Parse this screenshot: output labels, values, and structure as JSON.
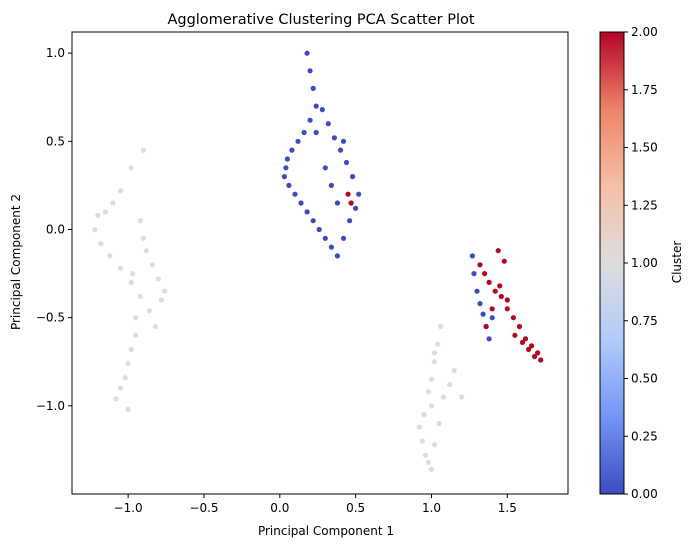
{
  "chart_data": {
    "type": "scatter",
    "title": "Agglomerative Clustering PCA Scatter Plot",
    "xlabel": "Principal Component 1",
    "ylabel": "Principal Component 2",
    "xlim": [
      -1.37,
      1.9
    ],
    "ylim": [
      -1.5,
      1.12
    ],
    "x_ticks": [
      -1.0,
      -0.5,
      0.0,
      0.5,
      1.0,
      1.5
    ],
    "x_tick_labels": [
      "−1.0",
      "−0.5",
      "0.0",
      "0.5",
      "1.0",
      "1.5"
    ],
    "y_ticks": [
      1.0,
      0.5,
      0.0,
      -0.5,
      -1.0
    ],
    "y_tick_labels": [
      "1.0",
      "0.5",
      "0.0",
      "−0.5",
      "−1.0"
    ],
    "grid": false,
    "colormap": "coolwarm",
    "colorbar": {
      "label": "Cluster",
      "min": 0.0,
      "max": 2.0,
      "ticks": [
        2.0,
        1.75,
        1.5,
        1.25,
        1.0,
        0.75,
        0.5,
        0.25,
        0.0
      ],
      "tick_labels": [
        "2.00",
        "1.75",
        "1.50",
        "1.25",
        "1.00",
        "0.75",
        "0.50",
        "0.25",
        "0.00"
      ],
      "color_stops": [
        "#3b4cc0",
        "#7396f5",
        "#b0cbfc",
        "#dddddd",
        "#f6bfa6",
        "#ee8468",
        "#b40426"
      ]
    },
    "cluster_colors": {
      "0": "#3b4cc0",
      "1": "#dddddd",
      "2": "#b40426"
    },
    "series": [
      {
        "cluster": 1,
        "color": "#dddddd",
        "x": [
          -0.9,
          -0.98,
          -1.05,
          -1.1,
          -1.15,
          -1.2,
          -1.22,
          -1.18,
          -1.12,
          -1.05,
          -0.98,
          -0.92,
          -0.86,
          -0.82,
          -0.78,
          -0.76,
          -0.8,
          -0.84,
          -0.88,
          -0.9,
          -0.92,
          -0.95,
          -0.98,
          -1.0,
          -1.02,
          -1.05,
          -1.08,
          -1.0,
          -0.95,
          -0.97
        ],
        "y": [
          0.45,
          0.35,
          0.22,
          0.15,
          0.1,
          0.08,
          0.0,
          -0.08,
          -0.15,
          -0.22,
          -0.3,
          -0.38,
          -0.46,
          -0.55,
          -0.4,
          -0.35,
          -0.28,
          -0.2,
          -0.12,
          -0.05,
          0.05,
          -0.6,
          -0.68,
          -0.76,
          -0.84,
          -0.9,
          -0.96,
          -1.02,
          -0.5,
          -0.25
        ]
      },
      {
        "cluster": 1,
        "color": "#dddddd",
        "x": [
          1.06,
          1.04,
          1.02,
          1.0,
          0.98,
          0.95,
          0.92,
          0.94,
          0.96,
          0.98,
          1.0,
          1.02,
          1.05,
          1.08,
          1.12,
          1.15,
          1.2,
          1.02,
          1.0
        ],
        "y": [
          -0.55,
          -0.65,
          -0.75,
          -0.85,
          -0.92,
          -1.05,
          -1.12,
          -1.2,
          -1.28,
          -1.32,
          -1.36,
          -1.22,
          -1.1,
          -0.95,
          -0.88,
          -0.8,
          -0.95,
          -0.7,
          -1.0
        ]
      },
      {
        "cluster": 0,
        "color": "#3b4cc0",
        "x": [
          0.18,
          0.2,
          0.22,
          0.24,
          0.2,
          0.16,
          0.12,
          0.08,
          0.05,
          0.04,
          0.03,
          0.06,
          0.1,
          0.14,
          0.18,
          0.22,
          0.26,
          0.3,
          0.34,
          0.38,
          0.42,
          0.46,
          0.5,
          0.52,
          0.48,
          0.44,
          0.4,
          0.36,
          0.32,
          0.28,
          0.24,
          0.3,
          0.34,
          0.38,
          0.42
        ],
        "y": [
          1.0,
          0.9,
          0.8,
          0.7,
          0.62,
          0.55,
          0.5,
          0.45,
          0.4,
          0.35,
          0.3,
          0.25,
          0.2,
          0.15,
          0.1,
          0.05,
          0.0,
          -0.05,
          -0.1,
          -0.15,
          -0.05,
          0.05,
          0.12,
          0.2,
          0.3,
          0.38,
          0.45,
          0.52,
          0.6,
          0.68,
          0.55,
          0.35,
          0.25,
          0.15,
          0.5
        ]
      },
      {
        "cluster": 0,
        "color": "#3b4cc0",
        "x": [
          1.27,
          1.28,
          1.3,
          1.32,
          1.34,
          1.36,
          1.38,
          1.4
        ],
        "y": [
          -0.15,
          -0.25,
          -0.35,
          -0.42,
          -0.48,
          -0.55,
          -0.62,
          -0.5
        ]
      },
      {
        "cluster": 2,
        "color": "#b40426",
        "x": [
          1.32,
          1.35,
          1.38,
          1.42,
          1.46,
          1.5,
          1.54,
          1.58,
          1.62,
          1.66,
          1.7,
          1.72,
          1.68,
          1.64,
          1.6,
          1.55,
          1.5,
          1.45,
          1.4,
          1.36,
          1.44,
          1.48,
          0.45,
          0.47
        ],
        "y": [
          -0.2,
          -0.25,
          -0.3,
          -0.35,
          -0.38,
          -0.45,
          -0.5,
          -0.55,
          -0.62,
          -0.66,
          -0.7,
          -0.74,
          -0.72,
          -0.68,
          -0.64,
          -0.6,
          -0.4,
          -0.32,
          -0.45,
          -0.55,
          -0.12,
          -0.18,
          0.2,
          0.15
        ]
      }
    ]
  }
}
